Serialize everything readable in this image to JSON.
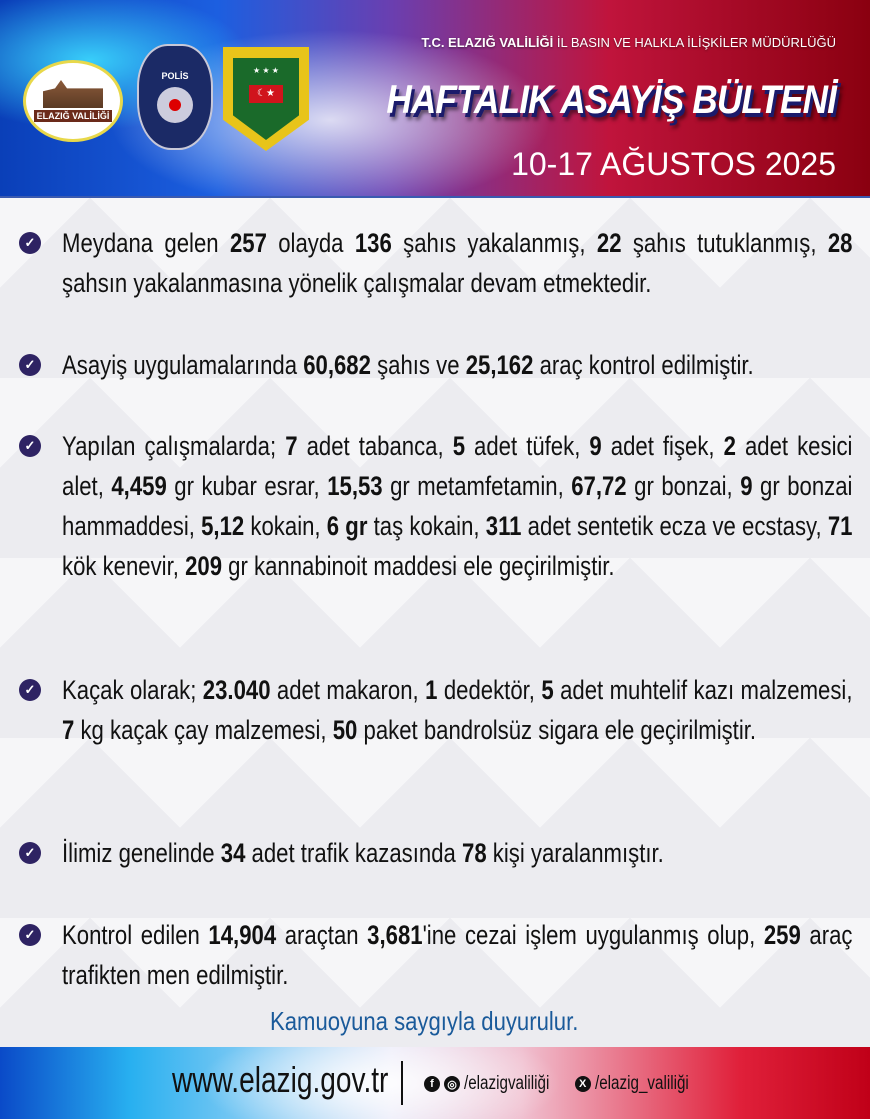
{
  "header": {
    "logo_valilik": "T.C. ELAZIĞ VALİLİĞİ",
    "logo_polis": "POLİS",
    "logo_jandarma": "JANDARMA",
    "subtitle_bold": "T.C. ELAZIĞ VALİLİĞİ",
    "subtitle_rest": " İL BASIN VE HALKLA İLİŞKİLER MÜDÜRLÜĞÜ",
    "title": "HAFTALIK ASAYİŞ BÜLTENİ",
    "date": "10-17 AĞUSTOS 2025"
  },
  "colors": {
    "check": "#2e2363",
    "closing": "#1a5a9a",
    "blue": "#0a3fb8",
    "red": "#c0143c"
  },
  "paragraphs": [
    [
      {
        "t": "Meydana gelen "
      },
      {
        "t": "257",
        "b": 1
      },
      {
        "t": " olayda "
      },
      {
        "t": "136",
        "b": 1
      },
      {
        "t": " şahıs yakalanmış, "
      },
      {
        "t": "22",
        "b": 1
      },
      {
        "t": " şahıs tutuklanmış, "
      },
      {
        "t": "28",
        "b": 1
      },
      {
        "t": " şahsın yakalanmasına yönelik çalışmalar devam etmektedir."
      }
    ],
    [
      {
        "t": "Asayiş uygulamalarında "
      },
      {
        "t": "60,682",
        "b": 1
      },
      {
        "t": " şahıs ve "
      },
      {
        "t": "25,162",
        "b": 1
      },
      {
        "t": " araç kontrol edilmiştir."
      }
    ],
    [
      {
        "t": "Yapılan çalışmalarda; "
      },
      {
        "t": "7",
        "b": 1
      },
      {
        "t": " adet tabanca, "
      },
      {
        "t": "5",
        "b": 1
      },
      {
        "t": " adet tüfek, "
      },
      {
        "t": "9",
        "b": 1
      },
      {
        "t": " adet fişek, "
      },
      {
        "t": "2",
        "b": 1
      },
      {
        "t": " adet kesici alet, "
      },
      {
        "t": "4,459",
        "b": 1
      },
      {
        "t": " gr kubar esrar, "
      },
      {
        "t": "15,53",
        "b": 1
      },
      {
        "t": " gr metamfetamin, "
      },
      {
        "t": "67,72",
        "b": 1
      },
      {
        "t": " gr bonzai, "
      },
      {
        "t": "9",
        "b": 1
      },
      {
        "t": " gr bonzai hammaddesi, "
      },
      {
        "t": "5,12",
        "b": 1
      },
      {
        "t": " kokain, "
      },
      {
        "t": "6 gr",
        "b": 1
      },
      {
        "t": " taş kokain, "
      },
      {
        "t": "311",
        "b": 1
      },
      {
        "t": " adet sentetik ecza ve ecstasy, "
      },
      {
        "t": "71",
        "b": 1
      },
      {
        "t": " kök kenevir, "
      },
      {
        "t": "209",
        "b": 1
      },
      {
        "t": " gr kannabinoit maddesi ele geçirilmiştir."
      }
    ],
    [
      {
        "t": "Kaçak olarak; "
      },
      {
        "t": "23.040",
        "b": 1
      },
      {
        "t": " adet makaron, "
      },
      {
        "t": "1",
        "b": 1
      },
      {
        "t": " dedektör, "
      },
      {
        "t": "5",
        "b": 1
      },
      {
        "t": " adet muhtelif kazı malzemesi, "
      },
      {
        "t": "7",
        "b": 1
      },
      {
        "t": " kg kaçak çay malzemesi, "
      },
      {
        "t": "50",
        "b": 1
      },
      {
        "t": " paket bandrolsüz sigara ele geçirilmiştir."
      }
    ],
    [
      {
        "t": "İlimiz genelinde "
      },
      {
        "t": "34",
        "b": 1
      },
      {
        "t": " adet trafik kazasında "
      },
      {
        "t": "78",
        "b": 1
      },
      {
        "t": " kişi yaralanmıştır."
      }
    ],
    [
      {
        "t": "Kontrol edilen "
      },
      {
        "t": "14,904",
        "b": 1
      },
      {
        "t": " araçtan "
      },
      {
        "t": "3,681",
        "b": 1
      },
      {
        "t": "'ine cezai işlem uygulanmış olup, "
      },
      {
        "t": "259",
        "b": 1
      },
      {
        "t": " araç trafikten men edilmiştir."
      }
    ]
  ],
  "closing": "Kamuoyuna saygıyla duyurulur.",
  "footer": {
    "website": "www.elazig.gov.tr",
    "facebook_instagram": "/elazigvaliliği",
    "x": "/elazig_valiliği"
  }
}
